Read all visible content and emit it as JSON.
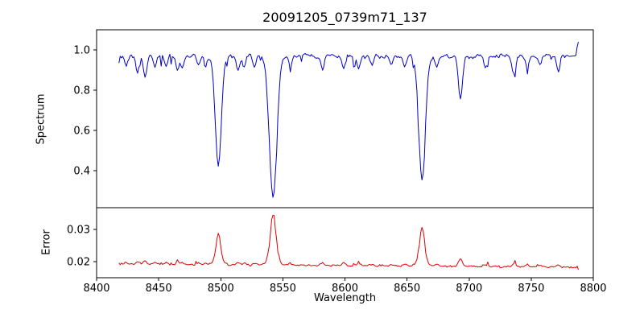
{
  "chart_data": {
    "type": "line",
    "title": "20091205_0739m71_137",
    "xlabel": "Wavelength",
    "xlim": [
      8400,
      8800
    ],
    "x_range": [
      8418,
      8788
    ],
    "xticks": [
      8400,
      8450,
      8500,
      8550,
      8600,
      8650,
      8700,
      8750,
      8800
    ],
    "grid": false,
    "legend": "none",
    "panels": [
      {
        "name": "spectrum",
        "ylabel": "Spectrum",
        "ylim": [
          0.216,
          1.1
        ],
        "yticks": [
          {
            "value": 0.4,
            "label": "0.4"
          },
          {
            "value": 0.6,
            "label": "0.6"
          },
          {
            "value": 0.8,
            "label": "0.8"
          },
          {
            "value": 1.0,
            "label": "1.0"
          }
        ],
        "line_color": "#0000cc",
        "continuum": 0.97,
        "noise_amplitude": 0.015,
        "major_lines": [
          {
            "center": 8498.0,
            "depth": 0.545,
            "width": 2.4
          },
          {
            "center": 8542.1,
            "depth": 0.7,
            "width": 3.0
          },
          {
            "center": 8662.1,
            "depth": 0.625,
            "width": 2.6
          }
        ],
        "minor_lines": [
          {
            "center": 8424,
            "depth": 0.05,
            "width": 1.2
          },
          {
            "center": 8433,
            "depth": 0.08,
            "width": 1.3
          },
          {
            "center": 8439,
            "depth": 0.1,
            "width": 1.4
          },
          {
            "center": 8447,
            "depth": 0.06,
            "width": 1.2
          },
          {
            "center": 8456,
            "depth": 0.05,
            "width": 1.2
          },
          {
            "center": 8465,
            "depth": 0.08,
            "width": 1.3
          },
          {
            "center": 8469,
            "depth": 0.06,
            "width": 1.2
          },
          {
            "center": 8482,
            "depth": 0.05,
            "width": 1.2
          },
          {
            "center": 8488,
            "depth": 0.05,
            "width": 1.2
          },
          {
            "center": 8514,
            "depth": 0.07,
            "width": 1.3
          },
          {
            "center": 8519,
            "depth": 0.05,
            "width": 1.2
          },
          {
            "center": 8527,
            "depth": 0.05,
            "width": 1.2
          },
          {
            "center": 8556,
            "depth": 0.05,
            "width": 1.2
          },
          {
            "center": 8582,
            "depth": 0.07,
            "width": 1.3
          },
          {
            "center": 8599,
            "depth": 0.06,
            "width": 1.3
          },
          {
            "center": 8611,
            "depth": 0.06,
            "width": 1.3
          },
          {
            "center": 8622,
            "depth": 0.05,
            "width": 1.2
          },
          {
            "center": 8637,
            "depth": 0.04,
            "width": 1.2
          },
          {
            "center": 8648,
            "depth": 0.05,
            "width": 1.2
          },
          {
            "center": 8674,
            "depth": 0.06,
            "width": 1.3
          },
          {
            "center": 8693,
            "depth": 0.21,
            "width": 1.6
          },
          {
            "center": 8713,
            "depth": 0.06,
            "width": 1.3
          },
          {
            "center": 8736,
            "depth": 0.09,
            "width": 1.4
          },
          {
            "center": 8747,
            "depth": 0.06,
            "width": 1.3
          },
          {
            "center": 8757,
            "depth": 0.05,
            "width": 1.2
          },
          {
            "center": 8772,
            "depth": 0.07,
            "width": 1.3
          }
        ],
        "right_edge_spike": {
          "center": 8788,
          "height": 0.07
        }
      },
      {
        "name": "error",
        "ylabel": "Error",
        "ylim": [
          0.015,
          0.0368
        ],
        "yticks": [
          {
            "value": 0.02,
            "label": "0.02"
          },
          {
            "value": 0.03,
            "label": "0.03"
          }
        ],
        "line_color": "#e00000",
        "baseline": 0.0185,
        "baseline_slope_per_angstrom": 2.7e-06,
        "noise_amplitude": 0.00025,
        "model": "error = baseline / sqrt(spectrum_flux)",
        "peak_values": [
          {
            "wavelength": 8498,
            "value": 0.026
          },
          {
            "wavelength": 8542,
            "value": 0.034
          },
          {
            "wavelength": 8662,
            "value": 0.03
          }
        ]
      }
    ]
  }
}
